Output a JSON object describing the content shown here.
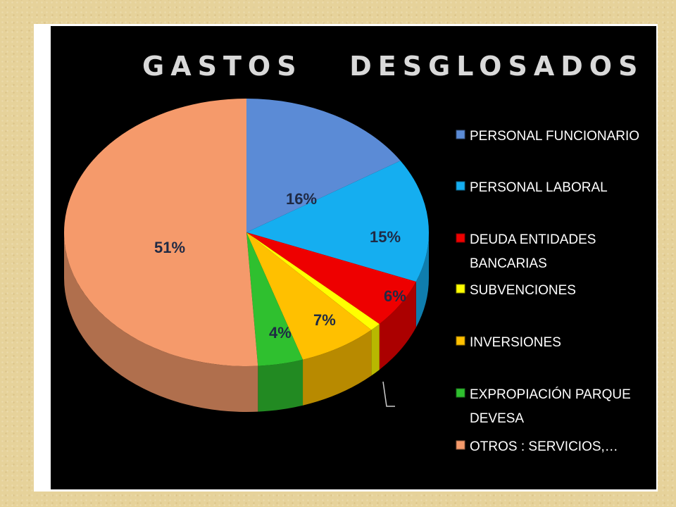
{
  "chart_data": {
    "type": "pie",
    "title": "GASTOS   DESGLOSADOS",
    "categories": [
      "PERSONAL FUNCIONARIO",
      "PERSONAL LABORAL",
      "DEUDA ENTIDADES BANCARIAS",
      "SUBVENCIONES",
      "INVERSIONES",
      "EXPROPIACIÓN PARQUE DEVESA",
      "OTROS : SERVICIOS,…"
    ],
    "legend_lines": [
      [
        "PERSONAL FUNCIONARIO"
      ],
      [
        "PERSONAL LABORAL"
      ],
      [
        "DEUDA ENTIDADES",
        "BANCARIAS"
      ],
      [
        "SUBVENCIONES"
      ],
      [
        "INVERSIONES"
      ],
      [
        "EXPROPIACIÓN PARQUE",
        "DEVESA"
      ],
      [
        "OTROS : SERVICIOS,…"
      ]
    ],
    "values": [
      16,
      15,
      6,
      1,
      7,
      4,
      51
    ],
    "data_labels": [
      "16%",
      "15%",
      "6%",
      "",
      "7%",
      "4%",
      "51%"
    ],
    "colors": [
      "#5b8bd6",
      "#15aef0",
      "#ee0000",
      "#ffff00",
      "#ffc000",
      "#2fc02f",
      "#f59a6b"
    ],
    "style": "3d",
    "legend_position": "right"
  }
}
